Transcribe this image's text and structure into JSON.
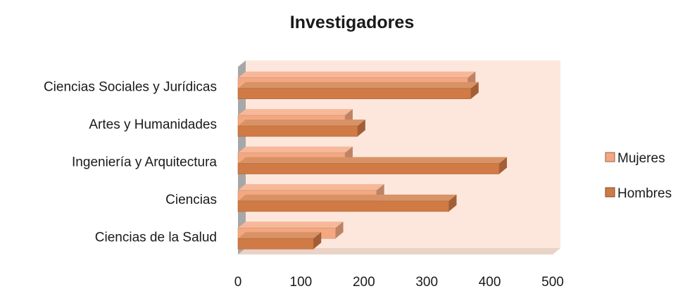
{
  "chart_data": {
    "type": "bar",
    "orientation": "horizontal",
    "style": "3d",
    "title": "Investigadores",
    "categories": [
      "Ciencias de la Salud",
      "Ciencias",
      "Ingeniería y Arquitectura",
      "Artes y Humanidades",
      "Ciencias Sociales y Jurídicas"
    ],
    "series": [
      {
        "name": "Mujeres",
        "values": [
          155,
          220,
          170,
          170,
          365
        ],
        "color": "#f4a882"
      },
      {
        "name": "Hombres",
        "values": [
          120,
          335,
          415,
          190,
          370
        ],
        "color": "#d07a45"
      }
    ],
    "xlim": [
      0,
      500
    ],
    "xticks": [
      "0",
      "100",
      "200",
      "300",
      "400",
      "500"
    ],
    "grid": false,
    "legend_position": "right",
    "plot_background": "#fde7dc",
    "wall_color": "#a7a7a7"
  }
}
